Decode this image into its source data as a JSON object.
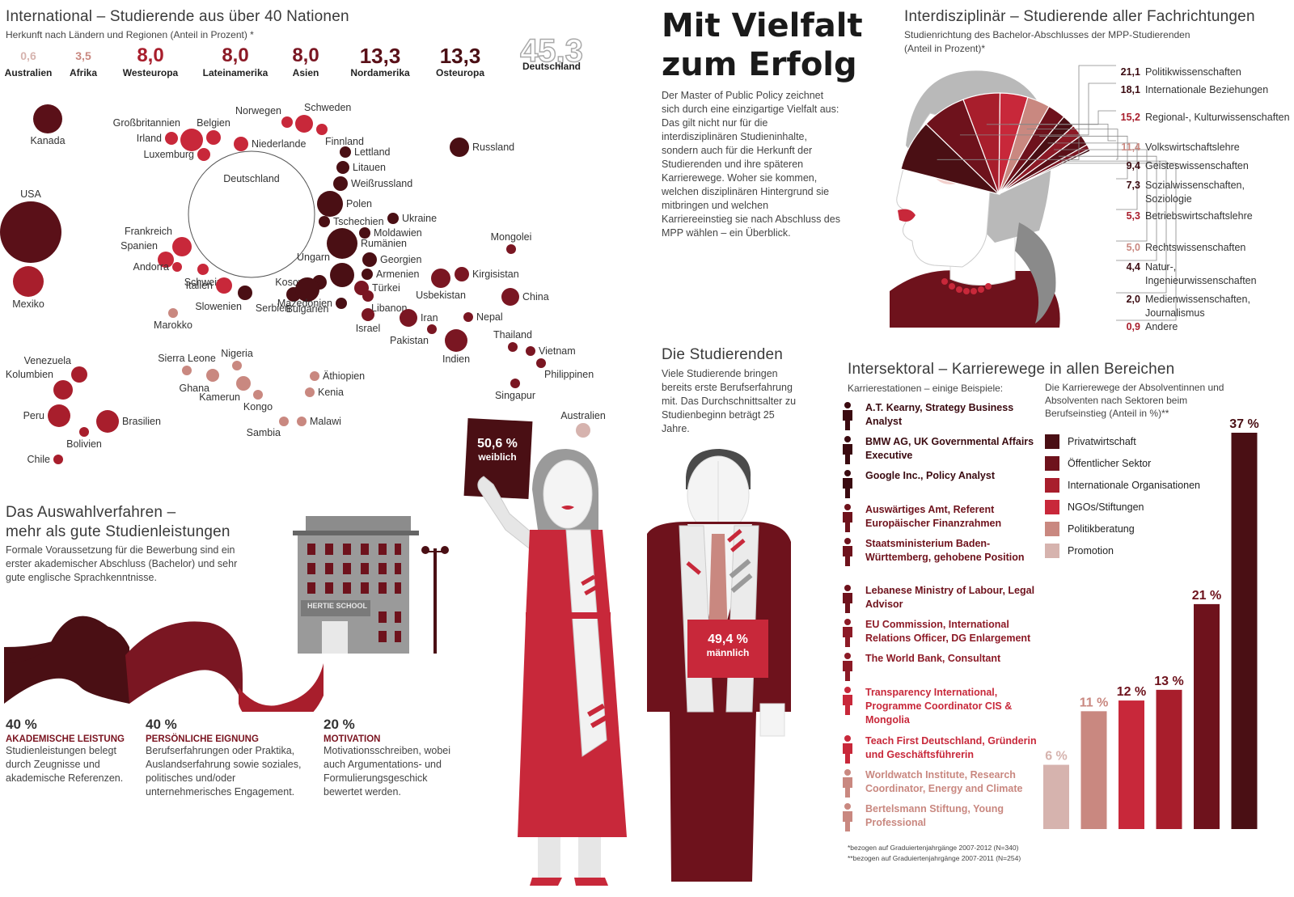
{
  "main_title_line1": "Mit Vielfalt",
  "main_title_line2": "zum Erfolg",
  "intro": "Der Master of Public Policy zeichnet sich durch eine einzigartige Vielfalt aus: Das gilt nicht nur für die interdisziplinären Studieninhalte, sondern auch für die Herkunft der Studierenden und ihre späteren Karrierewege. Woher sie kommen, welchen disziplinären Hintergrund sie mitbringen und welchen Karriereeinstieg sie nach Abschluss des MPP wählen – ein Überblick.",
  "colors": {
    "dark": "#4a0f14",
    "maroon": "#6e121c",
    "red": "#a81e2c",
    "bright": "#c8283a",
    "pink": "#c98880",
    "light": "#d6b3ae",
    "grey": "#b9b9b9"
  },
  "international": {
    "title": "International – Studierende aus über 40 Nationen",
    "subtitle": "Herkunft nach Ländern und Regionen (Anteil in Prozent) *",
    "stats": [
      {
        "value": "0,6",
        "label": "Australien",
        "color": "#d6b3ae"
      },
      {
        "value": "3,5",
        "label": "Afrika",
        "color": "#c98880"
      },
      {
        "value": "8,0",
        "label": "Westeuropa",
        "color": "#a81e2c"
      },
      {
        "value": "8,0",
        "label": "Lateinamerika",
        "color": "#8c1a26"
      },
      {
        "value": "8,0",
        "label": "Asien",
        "color": "#7a1622"
      },
      {
        "value": "13,3",
        "label": "Nordamerika",
        "color": "#5a1018"
      },
      {
        "value": "13,3",
        "label": "Osteuropa",
        "color": "#4a0f14"
      },
      {
        "value": "45,3",
        "label": "Deutschland",
        "color": "#ffffff"
      }
    ],
    "countries": [
      {
        "name": "Kanada",
        "r": 18,
        "color": "#5a1018"
      },
      {
        "name": "USA",
        "r": 38,
        "color": "#5a1018"
      },
      {
        "name": "Mexiko",
        "r": 19,
        "color": "#a81e2c"
      },
      {
        "name": "Großbritannien",
        "r": 14,
        "color": "#c8283a"
      },
      {
        "name": "Irland",
        "r": 8,
        "color": "#c8283a"
      },
      {
        "name": "Belgien",
        "r": 9,
        "color": "#c8283a"
      },
      {
        "name": "Luxemburg",
        "r": 8,
        "color": "#c8283a"
      },
      {
        "name": "Niederlande",
        "r": 9,
        "color": "#c8283a"
      },
      {
        "name": "Norwegen",
        "r": 7,
        "color": "#c8283a"
      },
      {
        "name": "Schweden",
        "r": 11,
        "color": "#c8283a"
      },
      {
        "name": "Finnland",
        "r": 7,
        "color": "#c8283a"
      },
      {
        "name": "Deutschland",
        "r": 78,
        "color": "#ffffff"
      },
      {
        "name": "Frankreich",
        "r": 12,
        "color": "#c8283a"
      },
      {
        "name": "Spanien",
        "r": 10,
        "color": "#c8283a"
      },
      {
        "name": "Andorra",
        "r": 6,
        "color": "#c8283a"
      },
      {
        "name": "Schweiz",
        "r": 7,
        "color": "#c8283a"
      },
      {
        "name": "Italien",
        "r": 10,
        "color": "#c8283a"
      },
      {
        "name": "Slowenien",
        "r": 9,
        "color": "#4a0f14"
      },
      {
        "name": "Marokko",
        "r": 6,
        "color": "#c98880"
      },
      {
        "name": "Lettland",
        "r": 7,
        "color": "#4a0f14"
      },
      {
        "name": "Litauen",
        "r": 8,
        "color": "#4a0f14"
      },
      {
        "name": "Weißrussland",
        "r": 9,
        "color": "#4a0f14"
      },
      {
        "name": "Polen",
        "r": 16,
        "color": "#4a0f14"
      },
      {
        "name": "Tschechien",
        "r": 7,
        "color": "#4a0f14"
      },
      {
        "name": "Ukraine",
        "r": 7,
        "color": "#4a0f14"
      },
      {
        "name": "Moldawien",
        "r": 7,
        "color": "#4a0f14"
      },
      {
        "name": "Rumänien",
        "r": 19,
        "color": "#4a0f14"
      },
      {
        "name": "Georgien",
        "r": 9,
        "color": "#4a0f14"
      },
      {
        "name": "Armenien",
        "r": 7,
        "color": "#4a0f14"
      },
      {
        "name": "Ungarn",
        "r": 15,
        "color": "#4a0f14"
      },
      {
        "name": "Kosovo",
        "r": 9,
        "color": "#4a0f14"
      },
      {
        "name": "Serbien",
        "r": 9,
        "color": "#4a0f14"
      },
      {
        "name": "Bulgarien",
        "r": 15,
        "color": "#4a0f14"
      },
      {
        "name": "Türkei",
        "r": 9,
        "color": "#7a1622"
      },
      {
        "name": "Mazedonien",
        "r": 7,
        "color": "#4a0f14"
      },
      {
        "name": "Libanon",
        "r": 7,
        "color": "#7a1622"
      },
      {
        "name": "Israel",
        "r": 8,
        "color": "#7a1622"
      },
      {
        "name": "Iran",
        "r": 11,
        "color": "#7a1622"
      },
      {
        "name": "Pakistan",
        "r": 6,
        "color": "#7a1622"
      },
      {
        "name": "Usbekistan",
        "r": 12,
        "color": "#7a1622"
      },
      {
        "name": "Kirgisistan",
        "r": 9,
        "color": "#7a1622"
      },
      {
        "name": "Indien",
        "r": 14,
        "color": "#7a1622"
      },
      {
        "name": "Nepal",
        "r": 6,
        "color": "#7a1622"
      },
      {
        "name": "Russland",
        "r": 12,
        "color": "#4a0f14"
      },
      {
        "name": "Mongolei",
        "r": 6,
        "color": "#7a1622"
      },
      {
        "name": "China",
        "r": 11,
        "color": "#7a1622"
      },
      {
        "name": "Thailand",
        "r": 6,
        "color": "#7a1622"
      },
      {
        "name": "Vietnam",
        "r": 6,
        "color": "#7a1622"
      },
      {
        "name": "Philippinen",
        "r": 6,
        "color": "#7a1622"
      },
      {
        "name": "Singapur",
        "r": 6,
        "color": "#7a1622"
      },
      {
        "name": "Australien",
        "r": 9,
        "color": "#d6b3ae"
      },
      {
        "name": "Sierra Leone",
        "r": 6,
        "color": "#c98880"
      },
      {
        "name": "Ghana",
        "r": 8,
        "color": "#c98880"
      },
      {
        "name": "Nigeria",
        "r": 6,
        "color": "#c98880"
      },
      {
        "name": "Kamerun",
        "r": 9,
        "color": "#c98880"
      },
      {
        "name": "Kongo",
        "r": 6,
        "color": "#c98880"
      },
      {
        "name": "Sambia",
        "r": 6,
        "color": "#c98880"
      },
      {
        "name": "Malawi",
        "r": 6,
        "color": "#c98880"
      },
      {
        "name": "Äthiopien",
        "r": 6,
        "color": "#c98880"
      },
      {
        "name": "Kenia",
        "r": 6,
        "color": "#c98880"
      },
      {
        "name": "Venezuela",
        "r": 10,
        "color": "#a81e2c"
      },
      {
        "name": "Kolumbien",
        "r": 12,
        "color": "#a81e2c"
      },
      {
        "name": "Peru",
        "r": 14,
        "color": "#a81e2c"
      },
      {
        "name": "Brasilien",
        "r": 14,
        "color": "#a81e2c"
      },
      {
        "name": "Bolivien",
        "r": 6,
        "color": "#a81e2c"
      },
      {
        "name": "Chile",
        "r": 6,
        "color": "#a81e2c"
      }
    ]
  },
  "selection": {
    "title1": "Das Auswahlverfahren –",
    "title2": "mehr als gute Studienleistungen",
    "text": "Formale Voraussetzung für die Bewerbung sind ein erster akademischer Abschluss (Bachelor) und sehr gute englische Sprachkenntnisse.",
    "building": "HERTIE SCHOOL",
    "criteria": [
      {
        "pct": "40 %",
        "title": "AKADEMISCHE LEISTUNG",
        "desc": "Studienleistungen belegt durch Zeugnisse und akademische Referenzen."
      },
      {
        "pct": "40 %",
        "title": "PERSÖNLICHE EIGNUNG",
        "desc": "Berufserfahrungen oder Praktika, Auslandserfahrung sowie soziales, politisches und/oder unternehmerisches Engagement."
      },
      {
        "pct": "20 %",
        "title": "MOTIVATION",
        "desc": "Motivationsschreiben, wobei auch Argumentations- und Formulierungsgeschick bewertet werden."
      }
    ]
  },
  "students": {
    "title": "Die Studierenden",
    "text": "Viele Studierende bringen bereits erste Berufserfahrung mit. Das Durchschnittsalter zu Studienbeginn beträgt 25 Jahre.",
    "female_pct": "50,6 %",
    "female_label": "weiblich",
    "male_pct": "49,4 %",
    "male_label": "männlich"
  },
  "interdisciplinary": {
    "title": "Interdisziplinär – Studierende aller Fachrichtungen",
    "subtitle1": "Studienrichtung des Bachelor-Abschlusses der MPP-Studierenden",
    "subtitle2": "(Anteil in Prozent)*",
    "items": [
      {
        "value": "21,1",
        "label": "Politikwissenschaften",
        "color": "#3a0a10"
      },
      {
        "value": "18,1",
        "label": "Internationale Beziehungen",
        "color": "#3a0a10"
      },
      {
        "value": "15,2",
        "label": "Regional-, Kulturwissenschaften",
        "color": "#a81e2c"
      },
      {
        "value": "11,4",
        "label": "Volkswirtschaftslehre",
        "color": "#c98880"
      },
      {
        "value": "9,4",
        "label": "Geisteswissenschaften",
        "color": "#3a0a10"
      },
      {
        "value": "7,3",
        "label": "Sozialwissenschaften, Soziologie",
        "color": "#3a0a10"
      },
      {
        "value": "5,3",
        "label": "Betriebswirtschaftslehre",
        "color": "#a81e2c"
      },
      {
        "value": "5,0",
        "label": "Rechtswissenschaften",
        "color": "#c98880"
      },
      {
        "value": "4,4",
        "label": "Natur-, Ingenieurwissenschaften",
        "color": "#3a0a10"
      },
      {
        "value": "2,0",
        "label": "Medienwissenschaften, Journalismus",
        "color": "#3a0a10"
      },
      {
        "value": "0,9",
        "label": "Andere",
        "color": "#a81e2c"
      }
    ]
  },
  "intersectoral": {
    "title": "Intersektoral – Karrierewege in allen Bereichen",
    "careers_heading": "Karrierestationen – einige Beispiele:",
    "careers": [
      {
        "text": "A.T. Kearny, Strategy Business Analyst",
        "color": "#3a0a10"
      },
      {
        "text": "BMW AG, UK Governmental Affairs Executive",
        "color": "#3a0a10"
      },
      {
        "text": "Google Inc., Policy Analyst",
        "color": "#3a0a10"
      },
      {
        "text": "Auswärtiges Amt, Referent Europäischer Finanzrahmen",
        "color": "#6e121c"
      },
      {
        "text": "Staatsministerium Baden-Württemberg, gehobene Position",
        "color": "#6e121c"
      },
      {
        "text": "Lebanese Ministry of Labour, Legal Advisor",
        "color": "#6e121c"
      },
      {
        "text": "EU Commission, International Relations Officer, DG Enlargement",
        "color": "#8c1a26"
      },
      {
        "text": "The World Bank, Consultant",
        "color": "#8c1a26"
      },
      {
        "text": "Transparency International, Programme Coordinator CIS & Mongolia",
        "color": "#c8283a"
      },
      {
        "text": "Teach First Deutschland, Gründerin und Geschäftsführerin",
        "color": "#c8283a"
      },
      {
        "text": "Worldwatch Institute, Research Coordinator, Energy and Climate",
        "color": "#c98880"
      },
      {
        "text": "Bertelsmann Stiftung, Young Professional",
        "color": "#c98880"
      }
    ],
    "chart_heading": "Die Karrierewege der Absolventinnen und Absolventen nach Sektoren beim Berufseinstieg (Anteil in %)**",
    "footnote1": "*bezogen auf Graduiertenjahrgänge 2007-2012 (N=340)",
    "footnote2": "**bezogen auf Graduiertenjahrgänge 2007-2011 (N=254)"
  },
  "chart_data": [
    {
      "type": "pie",
      "categories": [
        "Politikwissenschaften",
        "Internationale Beziehungen",
        "Regional-, Kulturwissenschaften",
        "Volkswirtschaftslehre",
        "Geisteswissenschaften",
        "Sozialwissenschaften, Soziologie",
        "Betriebswirtschaftslehre",
        "Rechtswissenschaften",
        "Natur-, Ingenieurwissenschaften",
        "Medienwissenschaften, Journalismus",
        "Andere"
      ],
      "values": [
        21.1,
        18.1,
        15.2,
        11.4,
        9.4,
        7.3,
        5.3,
        5.0,
        4.4,
        2.0,
        0.9
      ]
    },
    {
      "type": "bar",
      "categories": [
        "Promotion",
        "Politikberatung",
        "NGOs/Stiftungen",
        "Internationale Organisationen",
        "Öffentlicher Sektor",
        "Privatwirtschaft"
      ],
      "values": [
        6,
        11,
        12,
        13,
        21,
        37
      ],
      "labels": [
        "6 %",
        "11 %",
        "12 %",
        "13 %",
        "21 %",
        "37 %"
      ],
      "colors": [
        "#d6b3ae",
        "#c98880",
        "#c8283a",
        "#a81e2c",
        "#6e121c",
        "#4a0f14"
      ],
      "legend_order": [
        "Privatwirtschaft",
        "Öffentlicher Sektor",
        "Internationale Organisationen",
        "NGOs/Stiftungen",
        "Politikberatung",
        "Promotion"
      ],
      "legend_colors": [
        "#4a0f14",
        "#6e121c",
        "#a81e2c",
        "#c8283a",
        "#c98880",
        "#d6b3ae"
      ],
      "ylim": [
        0,
        40
      ]
    },
    {
      "type": "pie",
      "categories": [
        "weiblich",
        "männlich"
      ],
      "values": [
        50.6,
        49.4
      ]
    },
    {
      "type": "bar",
      "categories": [
        "AKADEMISCHE LEISTUNG",
        "PERSÖNLICHE EIGNUNG",
        "MOTIVATION"
      ],
      "values": [
        40,
        40,
        20
      ]
    }
  ]
}
